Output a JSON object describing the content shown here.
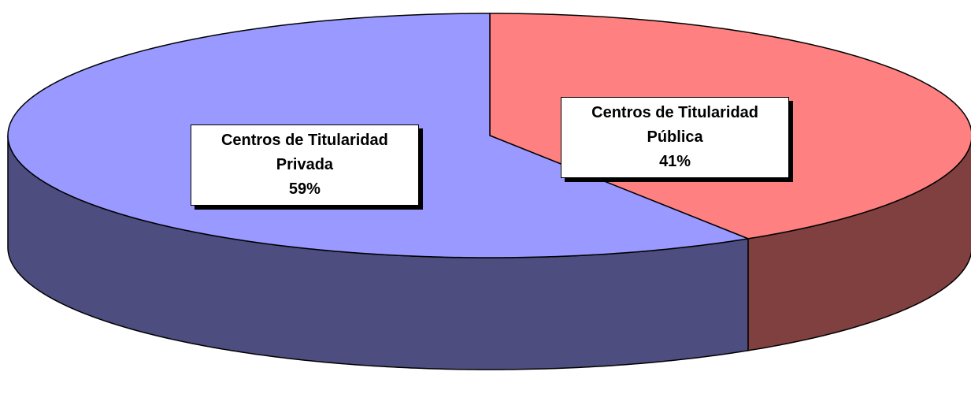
{
  "chart_data": {
    "type": "pie",
    "categories": [
      "Centros de Titularidad Pública",
      "Centros de Titularidad Privada"
    ],
    "values": [
      41,
      59
    ],
    "value_labels": [
      "41%",
      "59%"
    ],
    "colors": [
      "#ff8080",
      "#9999ff"
    ],
    "side_colors": [
      "#804040",
      "#4d4d80"
    ],
    "start_angle": 0,
    "direction": "clockwise"
  }
}
